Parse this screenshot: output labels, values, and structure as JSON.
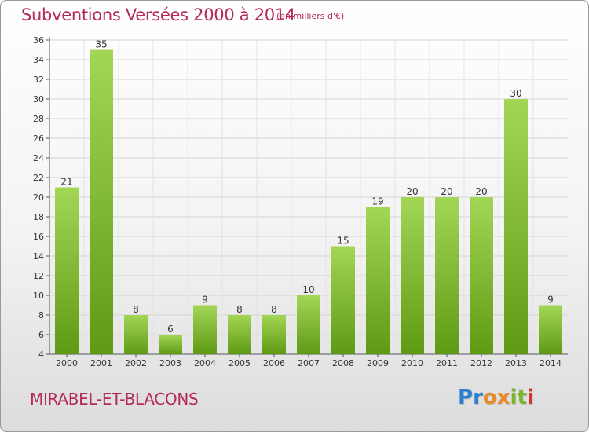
{
  "header": {
    "title": "Subventions Versées 2000 à 2014",
    "subtitle": "(en milliers d'€)"
  },
  "footer": {
    "commune": "MIRABEL-ET-BLACONS",
    "logo_letters": [
      {
        "char": "P",
        "color": "#2a7fd0"
      },
      {
        "char": "r",
        "color": "#2a7fd0"
      },
      {
        "char": "o",
        "color": "#e8892a"
      },
      {
        "char": "x",
        "color": "#e8892a"
      },
      {
        "char": "i",
        "color": "#7ab52c"
      },
      {
        "char": "t",
        "color": "#7ab52c"
      },
      {
        "char": "i",
        "color": "#d8352a"
      }
    ]
  },
  "colors": {
    "bar_top": "#a3d656",
    "bar_bottom": "#5f9a14",
    "title": "#b5285a"
  },
  "chart_data": {
    "type": "bar",
    "categories": [
      "2000",
      "2001",
      "2002",
      "2003",
      "2004",
      "2005",
      "2006",
      "2007",
      "2008",
      "2009",
      "2010",
      "2011",
      "2012",
      "2013",
      "2014"
    ],
    "values": [
      21,
      35,
      8,
      6,
      9,
      8,
      8,
      10,
      15,
      19,
      20,
      20,
      20,
      30,
      9
    ],
    "ylim": [
      4,
      36
    ],
    "yticks": [
      4,
      6,
      8,
      10,
      12,
      14,
      16,
      18,
      20,
      22,
      24,
      26,
      28,
      30,
      32,
      34,
      36
    ],
    "grid": true,
    "data_labels": true
  }
}
